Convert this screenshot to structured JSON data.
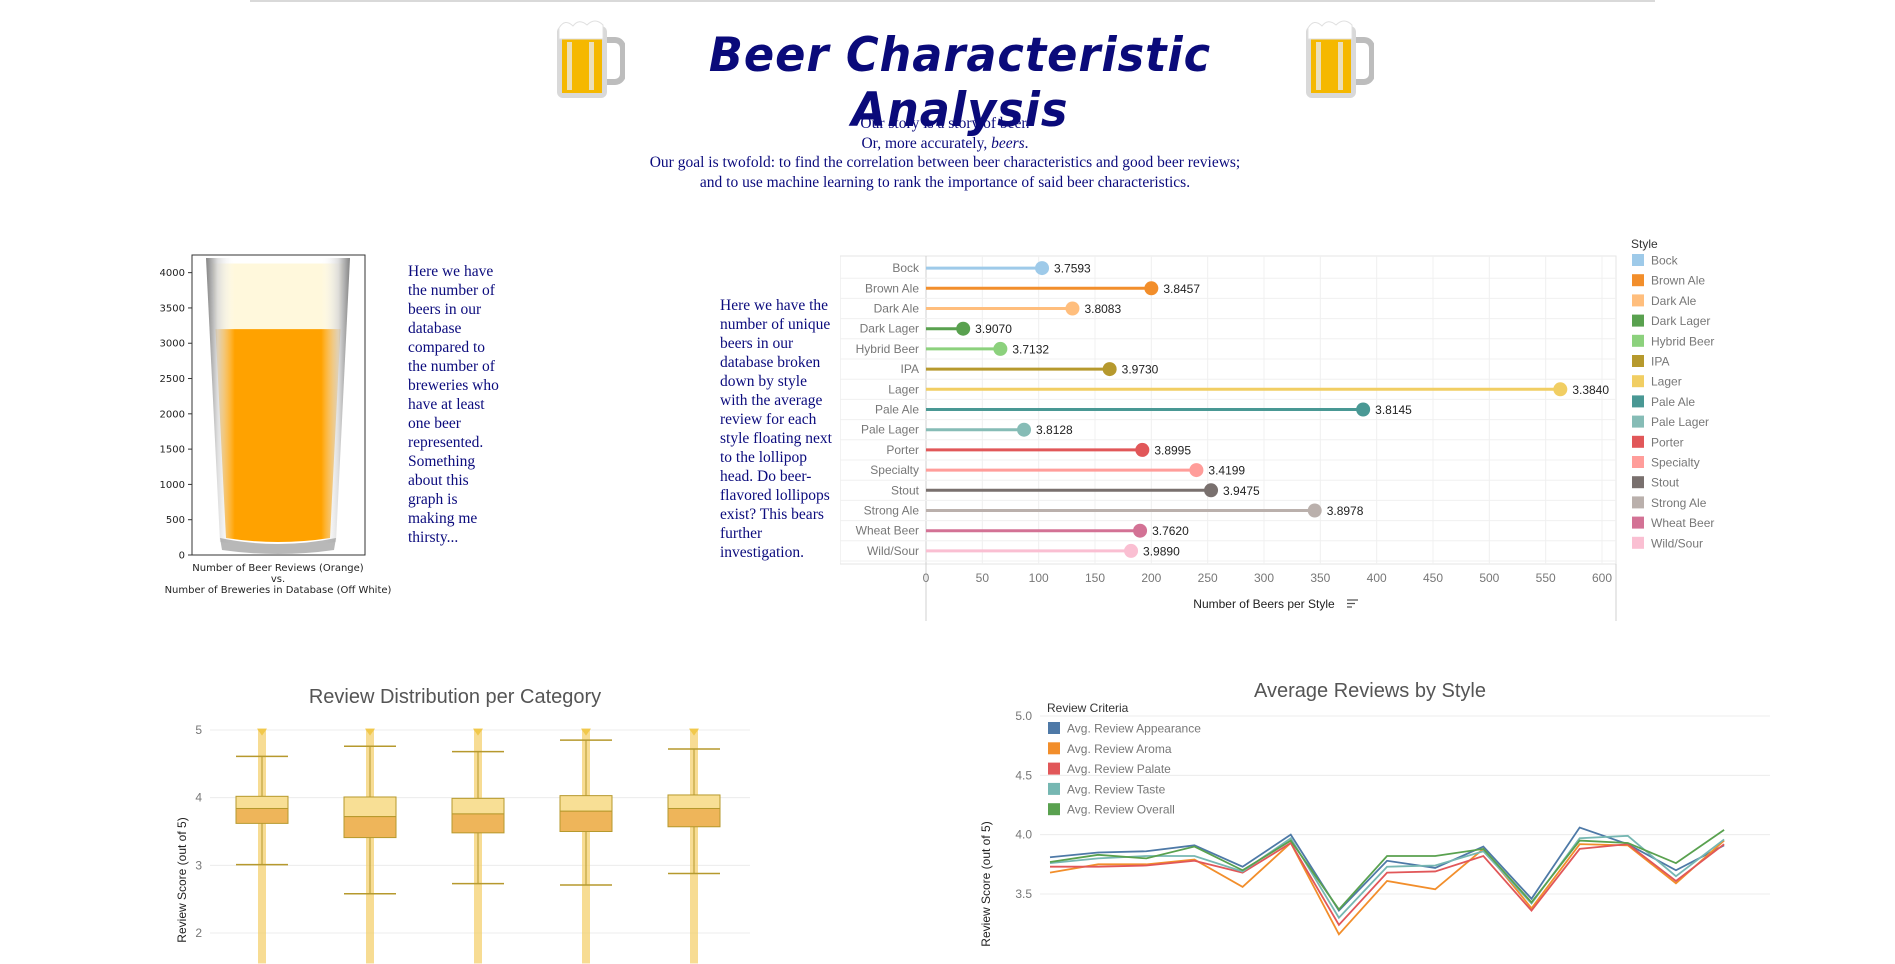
{
  "header": {
    "title": "Beer Characteristic Analysis",
    "mug_icon": "beer-mug-icon"
  },
  "intro": {
    "line1": "Our story is a story of beer.",
    "line2_pre": "Or, more accurately, ",
    "line2_em": "beers",
    "line2_post": ".",
    "line3": "Our goal is twofold: to find the correlation between beer characteristics and good beer reviews;",
    "line4": "and to use machine learning to rank the importance of said beer characteristics."
  },
  "glass_paragraph": {
    "lines": [
      "Here we have",
      "the number of",
      "beers in our",
      "database",
      "compared to",
      "the number of",
      "breweries who",
      "have at least",
      "one beer",
      "represented.",
      "Something",
      "about this",
      "graph is",
      "making me",
      "thirsty..."
    ]
  },
  "lollipop_paragraph": {
    "lines": [
      "Here we have the",
      "number of unique",
      "beers in our",
      "database broken",
      "down by style",
      "with the average",
      "review for each",
      "style floating next",
      "to the lollipop",
      "head. Do beer-",
      "flavored lollipops",
      "exist? This bears",
      "further",
      "investigation."
    ]
  },
  "chart_data": [
    {
      "type": "bar",
      "categories": [
        "Number of Beer Reviews",
        "Number of Breweries"
      ],
      "values": [
        3200,
        4130
      ],
      "colors": [
        "#ffa200",
        "#fff8dc"
      ],
      "xlabel_line1": "Number of Beer Reviews (Orange)",
      "xlabel_line2": "vs.",
      "xlabel_line3": "Number of Breweries in Database (Off White)",
      "yticks": [
        "0",
        "500",
        "1000",
        "1500",
        "2000",
        "2500",
        "3000",
        "3500",
        "4000"
      ],
      "ylim": [
        0,
        4250
      ]
    },
    {
      "type": "lollipop",
      "categories": [
        "Bock",
        "Brown Ale",
        "Dark Ale",
        "Dark Lager",
        "Hybrid Beer",
        "IPA",
        "Lager",
        "Pale Ale",
        "Pale Lager",
        "Porter",
        "Specialty",
        "Stout",
        "Strong Ale",
        "Wheat Beer",
        "Wild/Sour"
      ],
      "values": [
        103,
        200,
        130,
        33,
        66,
        163,
        563,
        388,
        87,
        192,
        240,
        253,
        345,
        190,
        182
      ],
      "avg_reviews": [
        "3.7593",
        "3.8457",
        "3.8083",
        "3.9070",
        "3.7132",
        "3.9730",
        "3.3840",
        "3.8145",
        "3.8128",
        "3.8995",
        "3.4199",
        "3.9475",
        "3.8978",
        "3.7620",
        "3.9890"
      ],
      "colors": [
        "#9ecae9",
        "#f28e2b",
        "#ffbe7d",
        "#59a14f",
        "#8cd17d",
        "#b6992d",
        "#f1ce63",
        "#499894",
        "#86bcb6",
        "#e15759",
        "#ff9d9a",
        "#79706e",
        "#bab0ac",
        "#d37295",
        "#fabfd2"
      ],
      "xlabel": "Number of Beers per Style",
      "xticks": [
        "0",
        "50",
        "100",
        "150",
        "200",
        "250",
        "300",
        "350",
        "400",
        "450",
        "500",
        "550",
        "600"
      ],
      "xlim": [
        0,
        600
      ],
      "legend_title": "Style"
    },
    {
      "type": "box",
      "title": "Review Distribution per Category",
      "ylabel": "Review Score (out of 5)",
      "yticks": [
        "2",
        "3",
        "4",
        "5"
      ],
      "ylim": [
        1.55,
        5.2
      ],
      "boxes": [
        {
          "q1": 3.62,
          "median": 3.84,
          "q3": 4.02,
          "lower": 3.01,
          "upper": 4.61
        },
        {
          "q1": 3.41,
          "median": 3.72,
          "q3": 4.01,
          "lower": 2.58,
          "upper": 4.76
        },
        {
          "q1": 3.48,
          "median": 3.76,
          "q3": 3.99,
          "lower": 2.73,
          "upper": 4.68
        },
        {
          "q1": 3.5,
          "median": 3.8,
          "q3": 4.03,
          "lower": 2.71,
          "upper": 4.85
        },
        {
          "q1": 3.57,
          "median": 3.84,
          "q3": 4.04,
          "lower": 2.88,
          "upper": 4.72
        }
      ]
    },
    {
      "type": "line",
      "title": "Average Reviews by Style",
      "ylabel": "Review Score (out of 5)",
      "yticks": [
        "3.5",
        "4.0",
        "4.5",
        "5.0"
      ],
      "ylim": [
        3.2,
        5.1
      ],
      "legend_title": "Review Criteria",
      "series": [
        {
          "name": "Avg. Review Appearance",
          "color": "#4e79a7",
          "values": [
            3.81,
            3.85,
            3.86,
            3.91,
            3.73,
            4.0,
            3.36,
            3.78,
            3.72,
            3.9,
            3.46,
            4.06,
            3.92,
            3.7,
            3.91
          ]
        },
        {
          "name": "Avg. Review Aroma",
          "color": "#f28e2b",
          "values": [
            3.68,
            3.75,
            3.75,
            3.79,
            3.56,
            3.93,
            3.16,
            3.61,
            3.54,
            3.88,
            3.38,
            3.92,
            3.91,
            3.59,
            3.95
          ]
        },
        {
          "name": "Avg. Review Palate",
          "color": "#e15759",
          "values": [
            3.73,
            3.73,
            3.74,
            3.78,
            3.68,
            3.93,
            3.24,
            3.68,
            3.69,
            3.82,
            3.36,
            3.88,
            3.92,
            3.61,
            3.92
          ]
        },
        {
          "name": "Avg. Review Taste",
          "color": "#76b7b2",
          "values": [
            3.76,
            3.8,
            3.82,
            3.82,
            3.69,
            3.97,
            3.3,
            3.73,
            3.74,
            3.86,
            3.42,
            3.97,
            3.99,
            3.65,
            3.96
          ]
        },
        {
          "name": "Avg. Review Overall",
          "color": "#59a14f",
          "values": [
            3.77,
            3.83,
            3.8,
            3.9,
            3.7,
            3.95,
            3.37,
            3.82,
            3.82,
            3.88,
            3.43,
            3.95,
            3.93,
            3.76,
            4.04
          ]
        }
      ]
    }
  ]
}
